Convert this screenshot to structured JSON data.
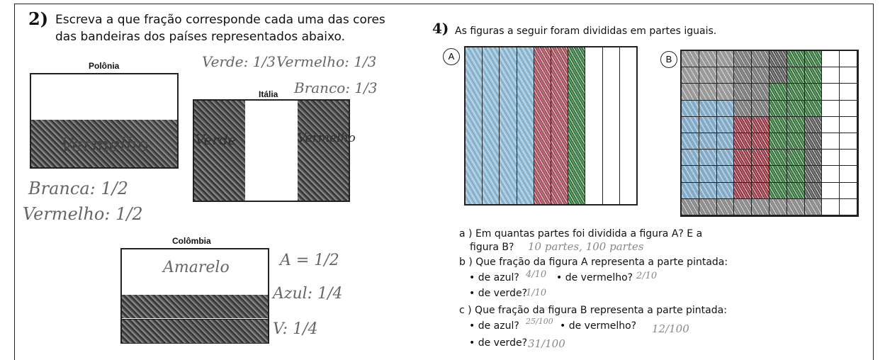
{
  "exercise_2": {
    "number": "2)",
    "prompt_line_1": "Escreva a que fração corresponde cada uma das cores",
    "prompt_line_2": "das bandeiras dos países representados abaixo.",
    "poland": {
      "label": "Polônia",
      "stripe_note": "Vermelho",
      "answer_white": "Branca: 1/2",
      "answer_red": "Vermelho: 1/2"
    },
    "italy": {
      "label": "Itália",
      "left_note": "Verde",
      "right_note": "Vermelho",
      "answer_green": "Verde: 1/3",
      "answer_red": "Vermelho: 1/3",
      "answer_white": "Branco: 1/3"
    },
    "colombia": {
      "label": "Colômbia",
      "stripe_note": "Amarelo",
      "answer_yellow": "A = 1/2",
      "answer_blue": "Azul: 1/4",
      "answer_red": "V: 1/4"
    }
  },
  "exercise_4": {
    "number": "4)",
    "prompt": "As figuras a seguir foram divididas em partes iguais.",
    "figure_a_label": "A",
    "figure_b_label": "B",
    "question_a": {
      "line_1": "a ) Em quantas partes foi dividida a figura A? E a",
      "line_2": "figura B?",
      "answer": "10 partes, 100 partes"
    },
    "question_b": {
      "prompt": "b ) Que fração da figura A representa a parte pintada:",
      "blue": "• de azul?",
      "blue_answer": "4/10",
      "red": "• de vermelho?",
      "red_answer": "2/10",
      "green": "• de verde?",
      "green_answer": "1/10"
    },
    "question_c": {
      "prompt": "c ) Que fração da figura B representa a parte pintada:",
      "blue": "• de azul?",
      "blue_answer": "25/100",
      "red": "• de vermelho?",
      "red_answer": "12/100",
      "green": "• de verde?",
      "green_answer": "31/100"
    }
  }
}
